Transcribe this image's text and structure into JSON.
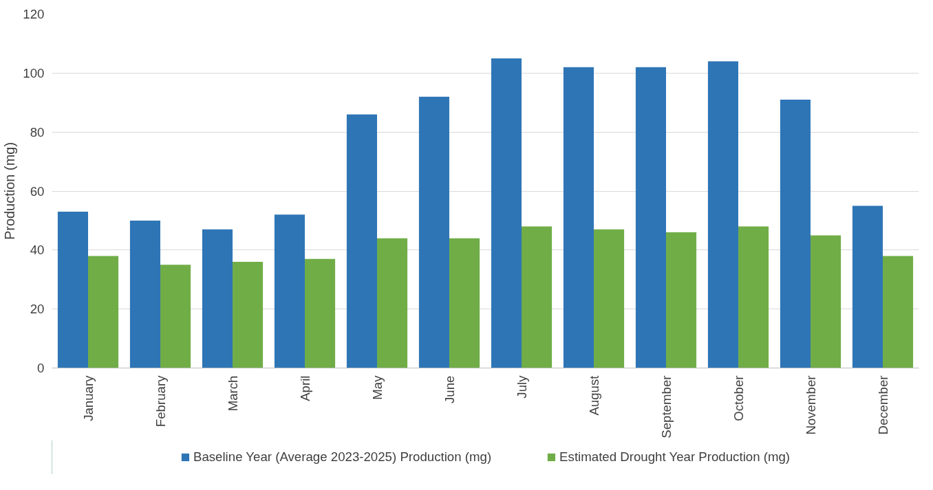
{
  "chart_data": {
    "type": "bar",
    "ylabel": "Production (mg)",
    "categories": [
      "January",
      "February",
      "March",
      "April",
      "May",
      "June",
      "July",
      "August",
      "September",
      "October",
      "November",
      "December"
    ],
    "series": [
      {
        "name": "Baseline Year (Average 2023-2025) Production (mg)",
        "color": "#2e75b6",
        "values": [
          53,
          50,
          47,
          52,
          86,
          92,
          105,
          102,
          102,
          104,
          91,
          55
        ]
      },
      {
        "name": "Estimated Drought Year Production (mg)",
        "color": "#70ad47",
        "values": [
          38,
          35,
          36,
          37,
          44,
          44,
          48,
          47,
          46,
          48,
          45,
          38
        ]
      }
    ],
    "ylim": [
      0,
      120
    ],
    "yticks": [
      0,
      20,
      40,
      60,
      80,
      100,
      120
    ],
    "grid": "y",
    "legend": "bottom"
  }
}
